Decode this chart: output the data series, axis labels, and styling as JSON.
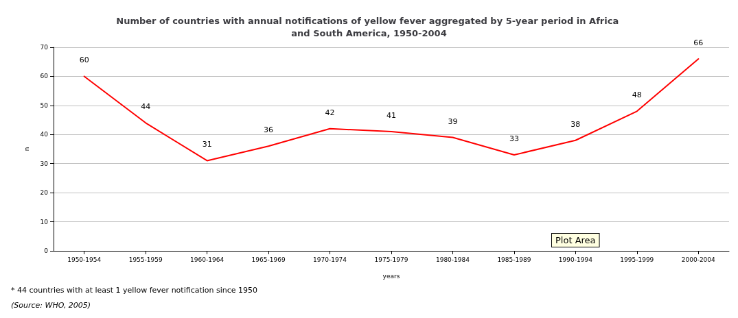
{
  "chart_data": {
    "type": "line",
    "title": "Number of countries with annual notifications of yellow fever aggregated by 5-year period in Africa and South America, 1950-2004",
    "xlabel": "years",
    "ylabel": "n",
    "categories": [
      "1950-1954",
      "1955-1959",
      "1960-1964",
      "1965-1969",
      "1970-1974",
      "1975-1979",
      "1980-1984",
      "1985-1989",
      "1990-1994",
      "1995-1999",
      "2000-2004"
    ],
    "series": [
      {
        "color": "#ff0000",
        "values": [
          60,
          44,
          31,
          36,
          42,
          41,
          39,
          33,
          38,
          48,
          66
        ]
      }
    ],
    "ylim": [
      0,
      70
    ],
    "yticks": [
      0,
      10,
      20,
      30,
      40,
      50,
      60,
      70
    ],
    "grid": "y",
    "marker": "none",
    "line_style": "solid",
    "data_labels": true,
    "annotations": [
      "* 44 countries with at least 1 yellow fever notification since 1950",
      "(Source: WHO, 2005)",
      "Plot Area"
    ]
  }
}
